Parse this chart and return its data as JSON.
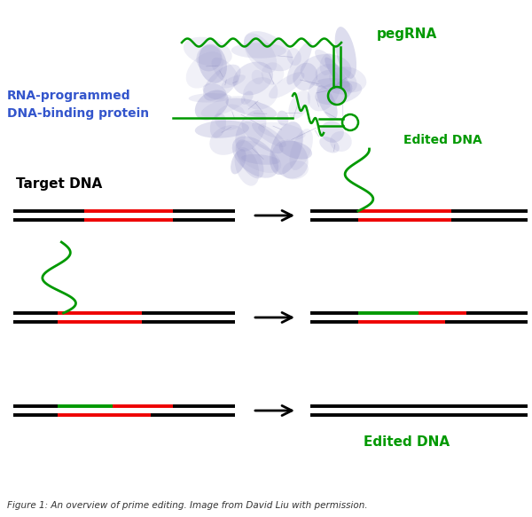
{
  "bg_color": "#ffffff",
  "caption": "Figure 1: An overview of prime editing. Image from David Liu with permission.",
  "caption_fontsize": 7.5,
  "label_rna_programmed": "RNA-programmed\nDNA-binding protein",
  "label_rna_color": "#3355cc",
  "label_peg": "pegRNA",
  "label_peg_color": "#009900",
  "label_edited_dna1": "Edited DNA",
  "label_edited_dna2": "Edited DNA",
  "label_edited_color": "#009900",
  "label_target_dna": "Target DNA",
  "label_target_color": "#000000",
  "dna_black": "#000000",
  "dna_red": "#ee0000",
  "dna_green": "#009900",
  "line_width": 2.8,
  "arrow_color": "#000000"
}
